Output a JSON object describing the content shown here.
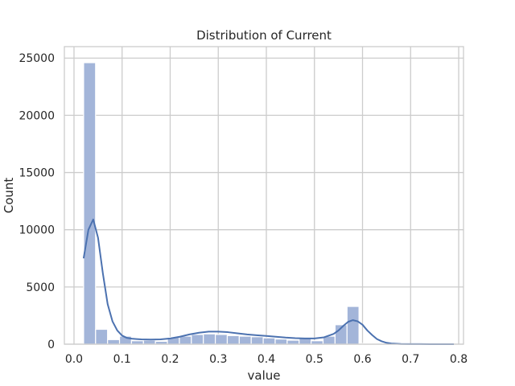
{
  "chart_data": {
    "type": "bar",
    "title": "Distribution of Current",
    "xlabel": "value",
    "ylabel": "Count",
    "xlim": [
      -0.02,
      0.81
    ],
    "ylim": [
      0,
      26000
    ],
    "x_ticks": [
      0.0,
      0.1,
      0.2,
      0.3,
      0.4,
      0.5,
      0.6,
      0.7,
      0.8
    ],
    "x_tick_labels": [
      "0.0",
      "0.1",
      "0.2",
      "0.3",
      "0.4",
      "0.5",
      "0.6",
      "0.7",
      "0.8"
    ],
    "y_ticks": [
      0,
      5000,
      10000,
      15000,
      20000,
      25000
    ],
    "y_tick_labels": [
      "0",
      "5000",
      "10000",
      "15000",
      "20000",
      "25000"
    ],
    "grid": true,
    "bar_color": "#a3b5d9",
    "kde_color": "#4c72b0",
    "bins": {
      "edges": [
        0.02,
        0.0449,
        0.0698,
        0.0947,
        0.1196,
        0.1445,
        0.1694,
        0.1943,
        0.2192,
        0.2441,
        0.269,
        0.2939,
        0.3188,
        0.3437,
        0.3686,
        0.3935,
        0.4184,
        0.4433,
        0.4682,
        0.4931,
        0.518,
        0.5429,
        0.5678,
        0.5927,
        0.6176,
        0.6425,
        0.6674,
        0.6923,
        0.7172,
        0.7421,
        0.767,
        0.7919
      ],
      "counts": [
        24600,
        1300,
        400,
        700,
        300,
        350,
        250,
        600,
        700,
        850,
        900,
        850,
        750,
        700,
        650,
        550,
        450,
        350,
        550,
        300,
        700,
        1700,
        3300,
        60,
        20,
        10,
        5,
        5,
        5,
        5,
        5
      ]
    },
    "kde": {
      "x": [
        0.02,
        0.03,
        0.04,
        0.05,
        0.06,
        0.07,
        0.08,
        0.09,
        0.1,
        0.11,
        0.12,
        0.13,
        0.14,
        0.16,
        0.18,
        0.2,
        0.22,
        0.24,
        0.26,
        0.28,
        0.3,
        0.32,
        0.34,
        0.36,
        0.38,
        0.4,
        0.42,
        0.44,
        0.46,
        0.48,
        0.5,
        0.52,
        0.54,
        0.55,
        0.56,
        0.57,
        0.58,
        0.59,
        0.6,
        0.61,
        0.62,
        0.63,
        0.64,
        0.65,
        0.66,
        0.68,
        0.7,
        0.72,
        0.74,
        0.76,
        0.79
      ],
      "y": [
        7500,
        10000,
        10900,
        9300,
        6200,
        3500,
        2000,
        1200,
        750,
        550,
        480,
        450,
        420,
        400,
        420,
        500,
        650,
        850,
        1000,
        1100,
        1100,
        1050,
        950,
        850,
        780,
        720,
        650,
        580,
        530,
        500,
        500,
        600,
        900,
        1200,
        1600,
        1950,
        2100,
        2000,
        1700,
        1200,
        800,
        450,
        250,
        120,
        60,
        20,
        10,
        5,
        3,
        2,
        2
      ]
    }
  }
}
